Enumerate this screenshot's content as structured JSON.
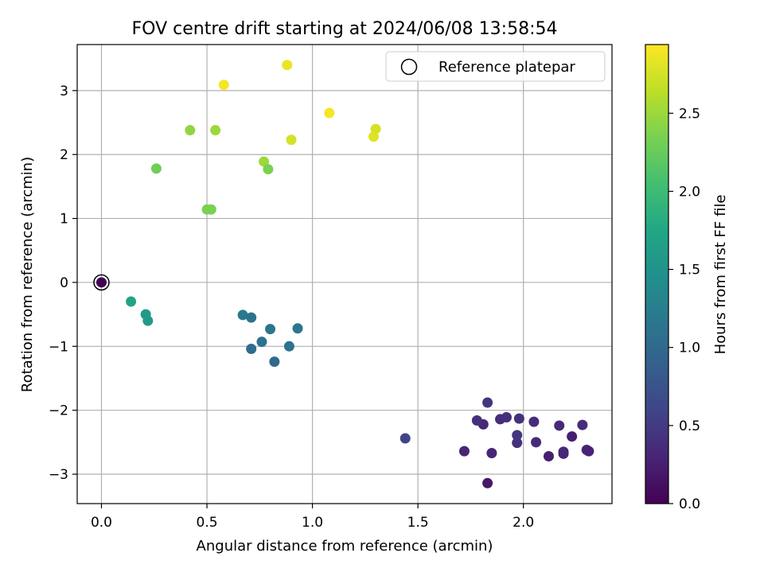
{
  "chart_data": {
    "type": "scatter",
    "title": "FOV centre drift starting at 2024/06/08 13:58:54",
    "xlabel": "Angular distance from reference (arcmin)",
    "ylabel": "Rotation from reference (arcmin)",
    "xlim": [
      -0.115,
      2.42
    ],
    "ylim": [
      -3.46,
      3.72
    ],
    "xticks": [
      "0.0",
      "0.5",
      "1.0",
      "1.5",
      "2.0"
    ],
    "xtick_values": [
      0.0,
      0.5,
      1.0,
      1.5,
      2.0
    ],
    "yticks": [
      "3",
      "2",
      "1",
      "0",
      "−1",
      "−2",
      "−3"
    ],
    "ytick_values": [
      3,
      2,
      1,
      0,
      -1,
      -2,
      -3
    ],
    "grid": true,
    "legend": {
      "placement": "top-right",
      "entries": [
        {
          "label": "Reference platepar",
          "marker": "open-circle",
          "color": "#000000"
        }
      ]
    },
    "colorbar": {
      "label": "Hours from first FF file",
      "colormap": "viridis",
      "range": [
        0.0,
        2.94
      ],
      "ticks": [
        "0.0",
        "0.5",
        "1.0",
        "1.5",
        "2.0",
        "2.5"
      ],
      "tick_values": [
        0.0,
        0.5,
        1.0,
        1.5,
        2.0,
        2.5
      ]
    },
    "reference_point": {
      "x": 0.0,
      "y": 0.0
    },
    "points": [
      {
        "x": 0.0,
        "y": 0.0,
        "c": 0.0
      },
      {
        "x": 1.83,
        "y": -3.14,
        "c": 0.2
      },
      {
        "x": 1.72,
        "y": -2.64,
        "c": 0.3
      },
      {
        "x": 1.85,
        "y": -2.67,
        "c": 0.3
      },
      {
        "x": 2.12,
        "y": -2.72,
        "c": 0.25
      },
      {
        "x": 2.19,
        "y": -2.68,
        "c": 0.3
      },
      {
        "x": 2.19,
        "y": -2.65,
        "c": 0.32
      },
      {
        "x": 2.3,
        "y": -2.62,
        "c": 0.3
      },
      {
        "x": 2.31,
        "y": -2.64,
        "c": 0.28
      },
      {
        "x": 2.23,
        "y": -2.41,
        "c": 0.25
      },
      {
        "x": 1.97,
        "y": -2.51,
        "c": 0.4
      },
      {
        "x": 2.06,
        "y": -2.5,
        "c": 0.35
      },
      {
        "x": 1.97,
        "y": -2.39,
        "c": 0.45
      },
      {
        "x": 1.81,
        "y": -2.22,
        "c": 0.35
      },
      {
        "x": 1.78,
        "y": -2.16,
        "c": 0.4
      },
      {
        "x": 1.89,
        "y": -2.14,
        "c": 0.38
      },
      {
        "x": 1.92,
        "y": -2.11,
        "c": 0.4
      },
      {
        "x": 1.98,
        "y": -2.13,
        "c": 0.4
      },
      {
        "x": 2.05,
        "y": -2.18,
        "c": 0.38
      },
      {
        "x": 2.17,
        "y": -2.24,
        "c": 0.35
      },
      {
        "x": 2.28,
        "y": -2.23,
        "c": 0.37
      },
      {
        "x": 1.83,
        "y": -1.88,
        "c": 0.45
      },
      {
        "x": 1.44,
        "y": -2.44,
        "c": 0.6
      },
      {
        "x": 0.67,
        "y": -0.51,
        "c": 1.2
      },
      {
        "x": 0.71,
        "y": -0.55,
        "c": 1.1
      },
      {
        "x": 0.8,
        "y": -0.73,
        "c": 1.15
      },
      {
        "x": 0.93,
        "y": -0.72,
        "c": 1.15
      },
      {
        "x": 0.76,
        "y": -0.93,
        "c": 1.1
      },
      {
        "x": 0.71,
        "y": -1.04,
        "c": 1.05
      },
      {
        "x": 0.89,
        "y": -1.0,
        "c": 1.1
      },
      {
        "x": 0.82,
        "y": -1.24,
        "c": 1.0
      },
      {
        "x": 0.14,
        "y": -0.3,
        "c": 1.7
      },
      {
        "x": 0.21,
        "y": -0.5,
        "c": 1.6
      },
      {
        "x": 0.22,
        "y": -0.6,
        "c": 1.6
      },
      {
        "x": 0.5,
        "y": 1.14,
        "c": 2.35
      },
      {
        "x": 0.52,
        "y": 1.14,
        "c": 2.35
      },
      {
        "x": 0.26,
        "y": 1.78,
        "c": 2.3
      },
      {
        "x": 0.77,
        "y": 1.89,
        "c": 2.5
      },
      {
        "x": 0.79,
        "y": 1.77,
        "c": 2.35
      },
      {
        "x": 0.42,
        "y": 2.38,
        "c": 2.45
      },
      {
        "x": 0.54,
        "y": 2.38,
        "c": 2.5
      },
      {
        "x": 0.58,
        "y": 3.09,
        "c": 2.9
      },
      {
        "x": 0.88,
        "y": 3.4,
        "c": 2.85
      },
      {
        "x": 0.9,
        "y": 2.23,
        "c": 2.75
      },
      {
        "x": 1.08,
        "y": 2.65,
        "c": 2.9
      },
      {
        "x": 1.29,
        "y": 2.28,
        "c": 2.8
      },
      {
        "x": 1.3,
        "y": 2.4,
        "c": 2.75
      }
    ]
  }
}
